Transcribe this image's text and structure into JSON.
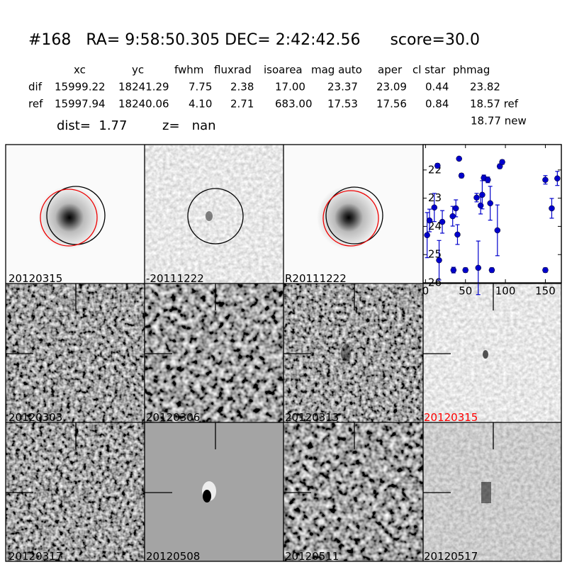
{
  "header": {
    "title": "#168   RA= 9:58:50.305 DEC= 2:42:42.56      score=30.0"
  },
  "table": {
    "columns": [
      "xc",
      "yc",
      "fwhm",
      "fluxrad",
      "isoarea",
      "mag auto",
      "aper",
      "cl star",
      "phmag"
    ],
    "rows": [
      [
        "dif",
        "15999.22",
        "18241.29",
        "7.75",
        "2.38",
        "17.00",
        "23.37",
        "23.09",
        "0.44",
        "23.82"
      ],
      [
        "ref",
        "15997.94",
        "18240.06",
        "4.10",
        "2.71",
        "683.00",
        "17.53",
        "17.56",
        "0.84",
        "18.57 ref"
      ]
    ],
    "extra": "18.77 new"
  },
  "dist": {
    "dist": "dist=  1.77",
    "z": "z=   nan"
  },
  "panels": [
    [
      "20120315",
      "-20111222",
      "R20111222"
    ],
    [
      "20120303",
      "20120306",
      "20120313",
      "20120315"
    ],
    [
      "20120317",
      "20120508",
      "20120511",
      "20120517"
    ]
  ],
  "chart_data": {
    "type": "scatter",
    "color": "#0000cc",
    "x": [
      2,
      5,
      11,
      15,
      17,
      21,
      35,
      34,
      38,
      40,
      42,
      45,
      50,
      64,
      66,
      69,
      71,
      73,
      78,
      81,
      83,
      90,
      93,
      96,
      150,
      150,
      158,
      165
    ],
    "values": [
      24.31,
      23.79,
      23.33,
      21.85,
      25.2,
      23.84,
      25.55,
      23.64,
      23.36,
      24.29,
      21.6,
      22.2,
      25.55,
      22.98,
      25.47,
      23.26,
      22.88,
      22.28,
      22.35,
      23.18,
      25.55,
      24.14,
      21.87,
      21.72,
      25.55,
      22.35,
      23.36,
      22.3
    ],
    "errors": [
      0.8,
      0.4,
      0.5,
      0.08,
      0.7,
      0.4,
      0.1,
      0.35,
      0.3,
      0.35,
      0.05,
      0.08,
      0.08,
      0.15,
      0.95,
      0.3,
      0.5,
      0.1,
      0.1,
      0.6,
      0.08,
      0.9,
      0.08,
      0.08,
      0.08,
      0.15,
      0.35,
      0.25
    ],
    "xlim": [
      -3,
      170
    ],
    "ylim": [
      26,
      21.1
    ],
    "xticks": [
      0,
      50,
      100,
      150
    ],
    "yticks": [
      22,
      23,
      24,
      25,
      26
    ]
  }
}
